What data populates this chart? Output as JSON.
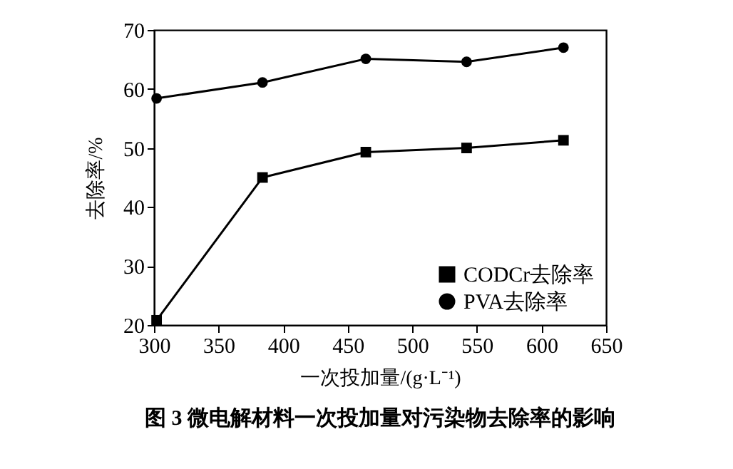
{
  "chart_data": {
    "type": "line",
    "title": "图 3   微电解材料一次投加量对污染物去除率的影响",
    "xlabel": "一次投加量/(g·L⁻¹)",
    "ylabel": "去除率/%",
    "x": [
      302,
      384,
      464,
      542,
      617
    ],
    "series": [
      {
        "name": "CODCr去除率",
        "color": "#000000",
        "marker": "square",
        "values": [
          20.8,
          45,
          49.3,
          50,
          51.3
        ]
      },
      {
        "name": "PVA去除率",
        "color": "#000000",
        "marker": "circle",
        "values": [
          58.4,
          61.1,
          65.1,
          64.6,
          67
        ]
      }
    ],
    "xlim": [
      300,
      650
    ],
    "xticks": [
      300,
      350,
      400,
      450,
      500,
      550,
      600,
      650
    ],
    "ylim": [
      20,
      70
    ],
    "yticks": [
      20,
      30,
      40,
      50,
      60,
      70
    ],
    "grid": false,
    "legend": "bottom right",
    "line_style": "solid"
  }
}
